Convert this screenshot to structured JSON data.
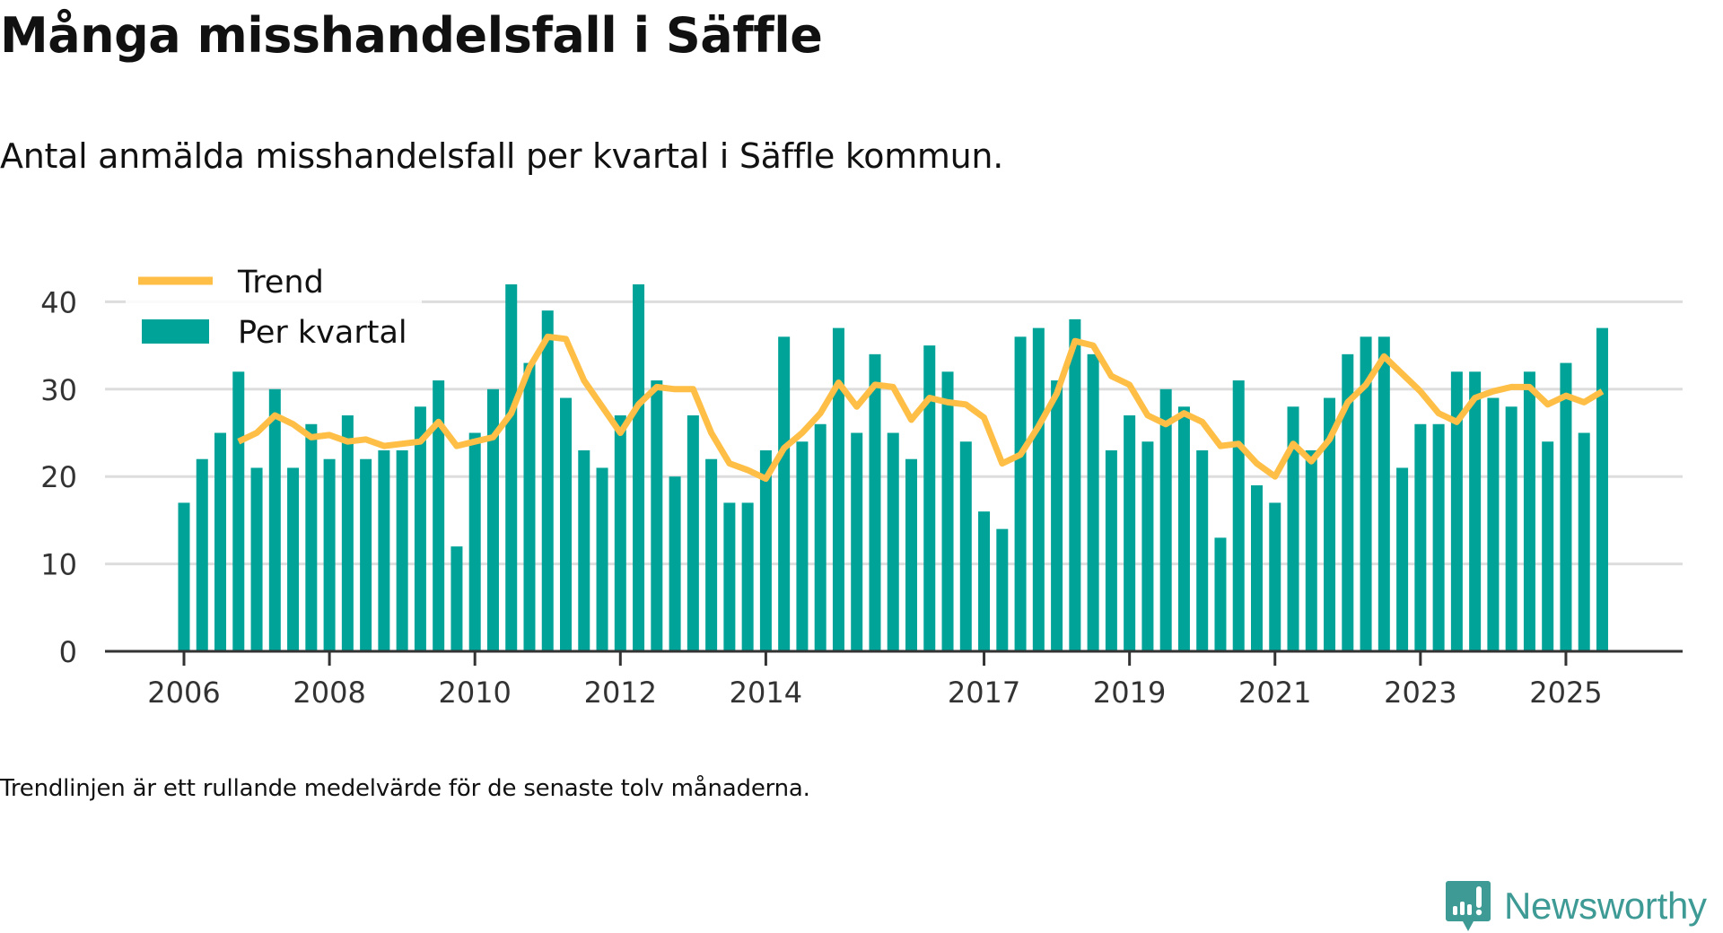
{
  "header": {
    "title": "Många misshandelsfall i Säffle",
    "subtitle": "Antal anmälda misshandelsfall per kvartal i Säffle kommun."
  },
  "footer": {
    "note": "Trendlinjen är ett rullande medelvärde för de senaste tolv månaderna.",
    "brand": "Newsworthy"
  },
  "colors": {
    "bar": "#00a398",
    "trend": "#ffbf47",
    "grid": "#dddddd",
    "axis": "#333333",
    "brand": "#3e9a95"
  },
  "chart_data": {
    "type": "bar",
    "title": "Många misshandelsfall i Säffle",
    "subtitle": "Antal anmälda misshandelsfall per kvartal i Säffle kommun.",
    "xlabel": "",
    "ylabel": "",
    "ylim": [
      0,
      44
    ],
    "yticks": [
      0,
      10,
      20,
      30,
      40
    ],
    "xticks": [
      {
        "year": 2006,
        "label": "2006"
      },
      {
        "year": 2008,
        "label": "2008"
      },
      {
        "year": 2010,
        "label": "2010"
      },
      {
        "year": 2012,
        "label": "2012"
      },
      {
        "year": 2014,
        "label": "2014"
      },
      {
        "year": 2017,
        "label": "2017"
      },
      {
        "year": 2019,
        "label": "2019"
      },
      {
        "year": 2021,
        "label": "2021"
      },
      {
        "year": 2023,
        "label": "2023"
      },
      {
        "year": 2025,
        "label": "2025"
      }
    ],
    "x_range": [
      2005.75,
      2026.25
    ],
    "grid": true,
    "legend": {
      "position": "top-left",
      "entries": [
        {
          "label": "Trend",
          "type": "line",
          "series": "trend"
        },
        {
          "label": "Per kvartal",
          "type": "bar",
          "series": "per_kvartal"
        }
      ]
    },
    "start": {
      "year": 2006,
      "quarter": 1
    },
    "series": [
      {
        "name": "Per kvartal",
        "type": "bar",
        "values": [
          17,
          22,
          25,
          32,
          21,
          30,
          21,
          26,
          22,
          27,
          22,
          23,
          23,
          28,
          31,
          12,
          25,
          30,
          42,
          33,
          39,
          29,
          23,
          21,
          27,
          42,
          31,
          20,
          27,
          22,
          17,
          17,
          23,
          36,
          24,
          26,
          37,
          25,
          34,
          25,
          22,
          35,
          32,
          24,
          16,
          14,
          36,
          37,
          31,
          38,
          34,
          23,
          27,
          24,
          30,
          28,
          23,
          13,
          31,
          19,
          17,
          28,
          23,
          29,
          34,
          36,
          36,
          21,
          26,
          26,
          32,
          32,
          29,
          28,
          32,
          24,
          33,
          25,
          37
        ]
      },
      {
        "name": "Trend",
        "type": "line",
        "start_index": 3,
        "values": [
          24,
          25,
          27,
          26,
          24.5,
          24.75,
          24,
          24.25,
          23.5,
          23.75,
          24,
          26.25,
          23.5,
          24,
          24.5,
          27.25,
          32.5,
          36,
          35.75,
          31,
          28,
          25,
          28.25,
          30.25,
          30,
          30,
          25,
          21.5,
          20.75,
          19.75,
          23.25,
          25,
          27.25,
          30.75,
          28,
          30.5,
          30.25,
          26.5,
          29,
          28.5,
          28.25,
          26.75,
          21.5,
          22.5,
          25.75,
          29.5,
          35.5,
          35,
          31.5,
          30.5,
          27,
          26,
          27.25,
          26.25,
          23.5,
          23.75,
          21.5,
          20,
          23.75,
          21.75,
          24.25,
          28.5,
          30.5,
          33.75,
          31.75,
          29.75,
          27.25,
          26.25,
          29,
          29.75,
          30.25,
          30.25,
          28.25,
          29.25,
          28.5,
          29.75
        ]
      }
    ]
  }
}
